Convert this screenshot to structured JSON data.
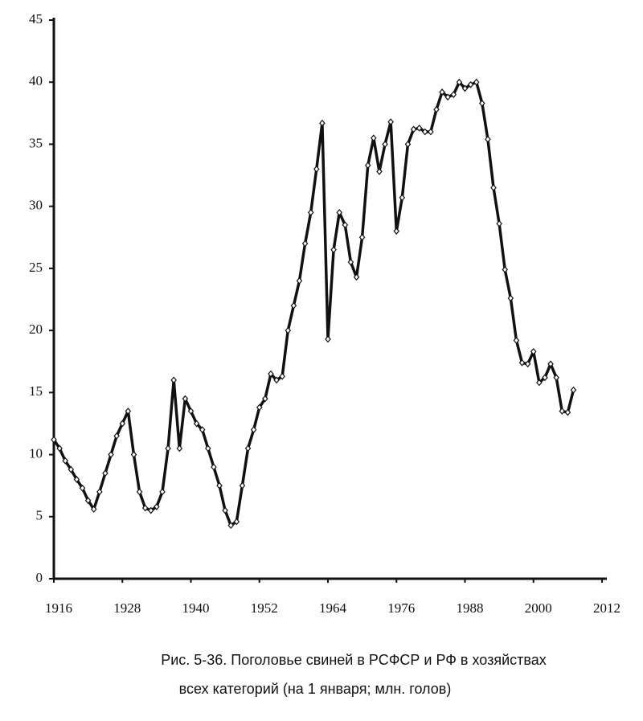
{
  "chart_data": {
    "type": "line",
    "caption_lines": [
      "Рис. 5-36. Поголовье свиней в РСФСР и РФ в хозяйствах",
      "всех категорий (на 1 января; млн. голов)"
    ],
    "x": [
      1916,
      1917,
      1918,
      1919,
      1920,
      1921,
      1922,
      1923,
      1924,
      1925,
      1926,
      1927,
      1928,
      1929,
      1930,
      1931,
      1932,
      1933,
      1934,
      1935,
      1936,
      1937,
      1938,
      1939,
      1940,
      1941,
      1942,
      1943,
      1944,
      1945,
      1946,
      1947,
      1948,
      1949,
      1950,
      1951,
      1952,
      1953,
      1954,
      1955,
      1956,
      1957,
      1958,
      1959,
      1960,
      1961,
      1962,
      1963,
      1964,
      1965,
      1966,
      1967,
      1968,
      1969,
      1970,
      1971,
      1972,
      1973,
      1974,
      1975,
      1976,
      1977,
      1978,
      1979,
      1980,
      1981,
      1982,
      1983,
      1984,
      1985,
      1986,
      1987,
      1988,
      1989,
      1990,
      1991,
      1992,
      1993,
      1994,
      1995,
      1996,
      1997,
      1998,
      1999,
      2000,
      2001,
      2002,
      2003,
      2004,
      2005,
      2006,
      2007
    ],
    "series": [
      {
        "color": "#111111",
        "values": [
          11.2,
          10.5,
          9.5,
          8.8,
          8.0,
          7.3,
          6.3,
          5.6,
          7.0,
          8.5,
          10.0,
          11.5,
          12.5,
          13.5,
          10.0,
          7.0,
          5.7,
          5.5,
          5.8,
          7.0,
          10.5,
          16.0,
          10.5,
          14.5,
          13.5,
          12.5,
          12.0,
          10.5,
          9.0,
          7.5,
          5.5,
          4.3,
          4.6,
          7.5,
          10.5,
          12.0,
          13.8,
          14.5,
          16.5,
          16.0,
          16.3,
          20.0,
          22.0,
          24.0,
          27.0,
          29.5,
          33.0,
          36.7,
          19.3,
          26.5,
          29.5,
          28.5,
          25.5,
          24.3,
          27.5,
          33.3,
          35.5,
          32.8,
          35.0,
          36.8,
          28.0,
          30.7,
          35.0,
          36.2,
          36.3,
          36.0,
          36.0,
          37.8,
          39.2,
          38.8,
          39.0,
          40.0,
          39.5,
          39.8,
          40.0,
          38.3,
          35.4,
          31.5,
          28.6,
          24.9,
          22.6,
          19.2,
          17.4,
          17.3,
          18.3,
          15.8,
          16.2,
          17.3,
          16.2,
          13.5,
          13.4,
          15.2
        ]
      }
    ],
    "xlim": [
      1916,
      2012
    ],
    "xticks": [
      1916,
      1928,
      1940,
      1952,
      1964,
      1976,
      1988,
      2000,
      2012
    ],
    "ylim": [
      0,
      45
    ],
    "yticks": [
      0,
      5,
      10,
      15,
      20,
      25,
      30,
      35,
      40,
      45
    ]
  }
}
